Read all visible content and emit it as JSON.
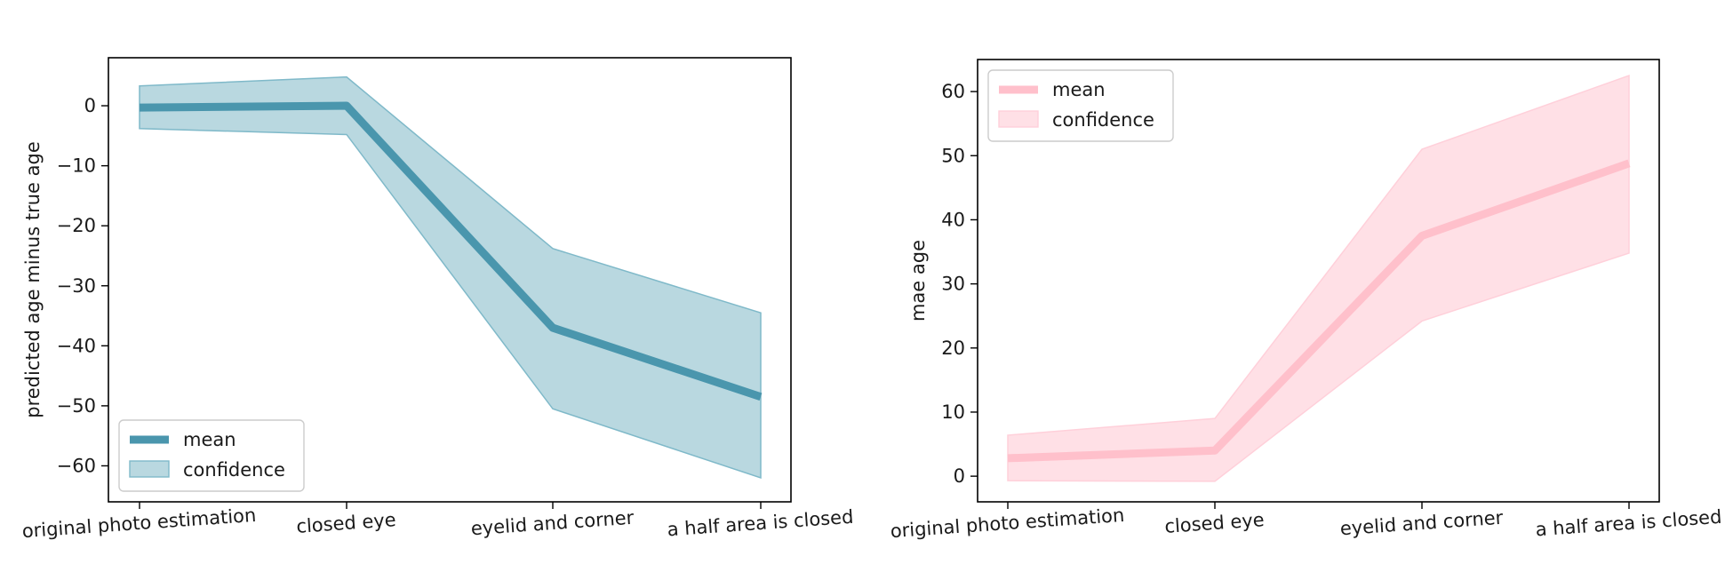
{
  "chart_data": [
    {
      "type": "line",
      "categories": [
        "original photo estimation",
        "closed eye",
        "eyelid and corner",
        "a half area is closed"
      ],
      "xlabel": "",
      "ylabel": "predicted age minus true age",
      "ylim": [
        -66,
        8
      ],
      "yticks": [
        0,
        -10,
        -20,
        -30,
        -40,
        -50,
        -60
      ],
      "grid": false,
      "legend_placement": "lower-left",
      "series": [
        {
          "name": "mean",
          "kind": "line",
          "values": [
            -0.3,
            0.0,
            -37.0,
            -48.5
          ],
          "color": "#4a96ad"
        },
        {
          "name": "confidence",
          "kind": "band",
          "lower": [
            -3.8,
            -4.8,
            -50.5,
            -62.0
          ],
          "upper": [
            3.3,
            4.8,
            -23.8,
            -34.5
          ],
          "color": "#b9d8e0",
          "edge_color": "#7fb9c9"
        }
      ]
    },
    {
      "type": "line",
      "categories": [
        "original photo estimation",
        "closed eye",
        "eyelid and corner",
        "a half area is closed"
      ],
      "xlabel": "",
      "ylabel": "mae age",
      "ylim": [
        -4,
        65
      ],
      "yticks": [
        0,
        10,
        20,
        30,
        40,
        50,
        60
      ],
      "grid": false,
      "legend_placement": "upper-left",
      "series": [
        {
          "name": "mean",
          "kind": "line",
          "values": [
            2.8,
            4.0,
            37.5,
            48.8
          ],
          "color": "#ffc0cb"
        },
        {
          "name": "confidence",
          "kind": "band",
          "lower": [
            -0.7,
            -0.8,
            24.2,
            34.8
          ],
          "upper": [
            6.4,
            9.0,
            51.0,
            62.5
          ],
          "color": "#ffe0e6",
          "edge_color": "#ffd0da"
        }
      ]
    }
  ]
}
